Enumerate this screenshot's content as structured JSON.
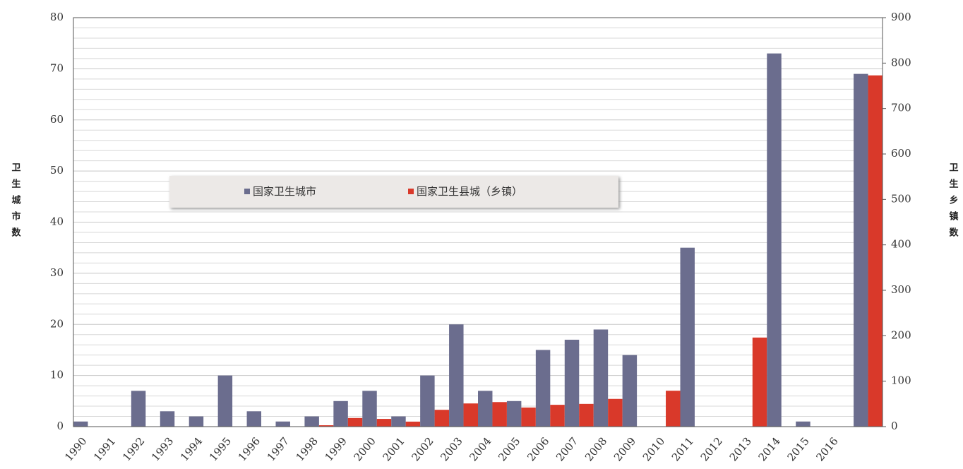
{
  "chart_data": {
    "type": "bar",
    "categories": [
      "1990",
      "1991",
      "1992",
      "1993",
      "1994",
      "1995",
      "1996",
      "1997",
      "1998",
      "1999",
      "2000",
      "2001",
      "2002",
      "2003",
      "2004",
      "2005",
      "2006",
      "2007",
      "2008",
      "2009",
      "2010",
      "2011",
      "2012",
      "2013",
      "2014",
      "2015",
      "2016",
      null
    ],
    "series": [
      {
        "name": "国家卫生城市",
        "color": "#6b6d8e",
        "values": [
          1,
          0,
          7,
          3,
          2,
          10,
          3,
          1,
          2,
          5,
          7,
          2,
          10,
          20,
          7,
          5,
          15,
          17,
          19,
          14,
          0,
          35,
          0,
          0,
          73,
          1,
          0,
          69
        ]
      },
      {
        "name": "国家卫生县城（乡镇）",
        "color": "#d9392a",
        "axis": "y2",
        "values": [
          0,
          0,
          0,
          0,
          0,
          0,
          0,
          0,
          3,
          19,
          17,
          11,
          37,
          51,
          54,
          42,
          48,
          50,
          61,
          0,
          79,
          0,
          0,
          196,
          0,
          0,
          0,
          773
        ]
      }
    ],
    "ylabel": "卫生城市数",
    "y2label": "卫生乡镇数",
    "ylim": [
      0,
      80
    ],
    "yticks": [
      0,
      10,
      20,
      30,
      40,
      50,
      60,
      70,
      80
    ],
    "y2lim": [
      0,
      900
    ],
    "y2ticks": [
      0,
      100,
      200,
      300,
      400,
      500,
      600,
      700,
      800,
      900
    ],
    "grid": true
  }
}
